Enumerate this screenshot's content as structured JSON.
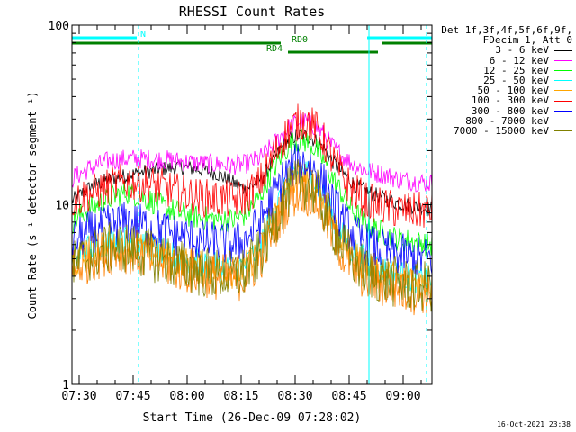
{
  "chart_data": {
    "type": "line",
    "title": "RHESSI Count Rates",
    "xlabel": "Start Time (26-Dec-09 07:28:02)",
    "ylabel": "Count Rate (s⁻¹ detector segment⁻¹)",
    "yscale": "log",
    "ylim": [
      1,
      100
    ],
    "yticks": [
      1,
      10,
      100
    ],
    "xlim_minutes": [
      0,
      100
    ],
    "xticks": [
      {
        "label": "07:30",
        "minute": 2
      },
      {
        "label": "07:45",
        "minute": 17
      },
      {
        "label": "08:00",
        "minute": 32
      },
      {
        "label": "08:15",
        "minute": 47
      },
      {
        "label": "08:30",
        "minute": 62
      },
      {
        "label": "08:45",
        "minute": 77
      },
      {
        "label": "09:00",
        "minute": 92
      }
    ],
    "legend_header": [
      "Det 1f,3f,4f,5f,6f,9f,",
      "FDecim 1, Att 0"
    ],
    "legend_position": "right",
    "series": [
      {
        "name": "3 - 6 keV",
        "color": "#000000",
        "x": [
          0,
          5,
          10,
          15,
          20,
          25,
          30,
          35,
          40,
          45,
          48,
          52,
          55,
          58,
          60,
          62,
          64,
          66,
          68,
          70,
          72,
          75,
          78,
          82,
          86,
          90,
          95,
          100
        ],
        "y": [
          10.5,
          12.5,
          13.8,
          14.5,
          15.2,
          15.8,
          16.2,
          15.8,
          15.0,
          13.2,
          12.2,
          13.5,
          16.5,
          20.5,
          22.8,
          24.0,
          24.5,
          23.8,
          22.5,
          20.5,
          17.8,
          15.2,
          13.2,
          11.8,
          11.0,
          10.3,
          9.8,
          9.4
        ]
      },
      {
        "name": "6 - 12 keV",
        "color": "#ff00ff",
        "x": [
          0,
          5,
          10,
          15,
          20,
          25,
          30,
          35,
          40,
          45,
          48,
          52,
          55,
          58,
          60,
          62,
          64,
          66,
          68,
          70,
          72,
          75,
          78,
          82,
          86,
          90,
          95,
          100
        ],
        "y": [
          14.0,
          16.0,
          17.5,
          18.0,
          18.0,
          17.8,
          17.5,
          17.0,
          16.8,
          16.5,
          16.8,
          18.0,
          20.5,
          24.0,
          26.5,
          28.5,
          29.5,
          28.5,
          26.8,
          24.5,
          21.5,
          18.8,
          16.8,
          15.5,
          14.8,
          14.0,
          13.5,
          13.2
        ]
      },
      {
        "name": "12 - 25 keV",
        "color": "#00ff00",
        "x": [
          0,
          5,
          10,
          15,
          20,
          25,
          30,
          35,
          40,
          45,
          48,
          52,
          55,
          58,
          60,
          62,
          64,
          66,
          68,
          70,
          72,
          75,
          78,
          82,
          86,
          90,
          95,
          100
        ],
        "y": [
          8.0,
          9.5,
          10.8,
          11.8,
          11.0,
          9.8,
          9.0,
          8.5,
          8.3,
          8.2,
          8.8,
          11.0,
          14.5,
          18.5,
          21.0,
          22.5,
          23.0,
          22.0,
          20.0,
          17.5,
          14.5,
          11.5,
          9.2,
          7.8,
          7.0,
          6.5,
          6.2,
          6.0
        ]
      },
      {
        "name": "25 - 50 keV",
        "color": "#00ffff",
        "x": [
          0,
          5,
          10,
          15,
          20,
          25,
          30,
          35,
          40,
          45,
          48,
          52,
          55,
          58,
          60,
          62,
          64,
          66,
          68,
          70,
          72,
          75,
          78,
          82,
          86,
          90,
          95,
          100
        ],
        "y": [
          5.0,
          5.8,
          6.3,
          6.4,
          6.0,
          5.5,
          5.0,
          4.7,
          4.5,
          4.4,
          4.6,
          5.8,
          8.0,
          11.0,
          13.2,
          14.8,
          15.5,
          14.8,
          13.2,
          11.0,
          8.8,
          6.8,
          5.5,
          4.8,
          4.4,
          4.1,
          3.9,
          3.8
        ]
      },
      {
        "name": "50 - 100 keV",
        "color": "#ffa500",
        "x": [
          0,
          5,
          10,
          15,
          20,
          25,
          30,
          35,
          40,
          45,
          48,
          52,
          55,
          58,
          60,
          62,
          64,
          66,
          68,
          70,
          72,
          75,
          78,
          82,
          86,
          90,
          95,
          100
        ],
        "y": [
          4.6,
          5.4,
          5.9,
          6.0,
          5.6,
          5.2,
          4.8,
          4.5,
          4.3,
          4.2,
          4.4,
          5.5,
          7.6,
          10.5,
          12.6,
          14.0,
          14.6,
          14.0,
          12.6,
          10.5,
          8.4,
          6.5,
          5.2,
          4.5,
          4.2,
          3.9,
          3.7,
          3.6
        ]
      },
      {
        "name": "100 - 300 keV",
        "color": "#ff0000",
        "x": [
          0,
          5,
          10,
          15,
          20,
          25,
          30,
          35,
          40,
          45,
          48,
          52,
          55,
          58,
          60,
          62,
          64,
          66,
          68,
          70,
          72,
          75,
          78,
          82,
          86,
          90,
          95,
          100
        ],
        "y": [
          10.5,
          11.5,
          12.5,
          13.5,
          13.2,
          12.5,
          11.6,
          11.0,
          10.8,
          10.6,
          11.0,
          13.0,
          17.0,
          22.0,
          25.5,
          28.0,
          29.5,
          28.5,
          26.0,
          22.5,
          18.5,
          14.5,
          12.0,
          10.5,
          9.8,
          9.4,
          9.2,
          9.3
        ]
      },
      {
        "name": "300 - 800 keV",
        "color": "#0000ff",
        "x": [
          0,
          5,
          10,
          15,
          20,
          25,
          30,
          35,
          40,
          45,
          48,
          52,
          55,
          58,
          60,
          62,
          64,
          66,
          68,
          70,
          72,
          75,
          78,
          82,
          86,
          90,
          95,
          100
        ],
        "y": [
          6.3,
          7.0,
          7.6,
          8.0,
          7.7,
          7.2,
          6.7,
          6.3,
          6.1,
          6.0,
          6.3,
          7.8,
          10.2,
          13.2,
          15.2,
          16.6,
          17.2,
          16.6,
          15.2,
          13.0,
          10.6,
          8.3,
          6.9,
          6.0,
          5.6,
          5.3,
          5.1,
          5.0
        ]
      },
      {
        "name": "800 - 7000 keV",
        "color": "#ff8000",
        "x": [
          0,
          5,
          10,
          15,
          20,
          25,
          30,
          35,
          40,
          45,
          48,
          52,
          55,
          58,
          60,
          62,
          64,
          66,
          68,
          70,
          72,
          75,
          78,
          82,
          86,
          90,
          95,
          100
        ],
        "y": [
          4.3,
          5.0,
          5.5,
          5.6,
          5.2,
          4.8,
          4.4,
          4.2,
          4.0,
          3.9,
          4.0,
          4.9,
          6.6,
          8.8,
          10.4,
          11.6,
          12.0,
          11.5,
          10.4,
          8.8,
          7.1,
          5.5,
          4.5,
          3.9,
          3.6,
          3.4,
          3.3,
          3.3
        ]
      },
      {
        "name": "7000 - 15000 keV",
        "color": "#808000",
        "x": [
          0,
          5,
          10,
          15,
          20,
          25,
          30,
          35,
          40,
          45,
          48,
          52,
          55,
          58,
          60,
          62,
          64,
          66,
          68,
          70,
          72,
          75,
          78,
          82,
          86,
          90,
          95,
          100
        ],
        "y": [
          4.5,
          5.2,
          5.7,
          5.8,
          5.4,
          5.0,
          4.6,
          4.3,
          4.1,
          4.0,
          4.2,
          5.2,
          7.0,
          9.6,
          11.4,
          12.8,
          13.3,
          12.7,
          11.4,
          9.6,
          7.7,
          6.0,
          4.9,
          4.2,
          3.9,
          3.7,
          3.5,
          3.5
        ]
      }
    ],
    "flag_bars": [
      {
        "label": "N",
        "color": "#00ffff",
        "segments": [
          [
            0,
            18
          ],
          [
            82,
            100
          ]
        ],
        "label_minute": 19,
        "row": 1
      },
      {
        "label": "RD0",
        "color": "#008000",
        "segments": [
          [
            0,
            58
          ],
          [
            86,
            100
          ]
        ],
        "label_minute": 61,
        "row": 2
      },
      {
        "label": "RD4",
        "color": "#008000",
        "segments": [
          [
            60,
            85
          ]
        ],
        "label_minute": 54,
        "row": 3
      }
    ],
    "vertical_markers": [
      {
        "minute": 0,
        "style": "solid",
        "color": "#00ffff"
      },
      {
        "minute": 18.5,
        "style": "dashed",
        "color": "#00ffff"
      },
      {
        "minute": 82.5,
        "style": "solid",
        "color": "#00ffff"
      },
      {
        "minute": 98.5,
        "style": "dashed",
        "color": "#00ffff"
      }
    ],
    "grid": false
  },
  "stamp": "16-Oct-2021 23:38"
}
